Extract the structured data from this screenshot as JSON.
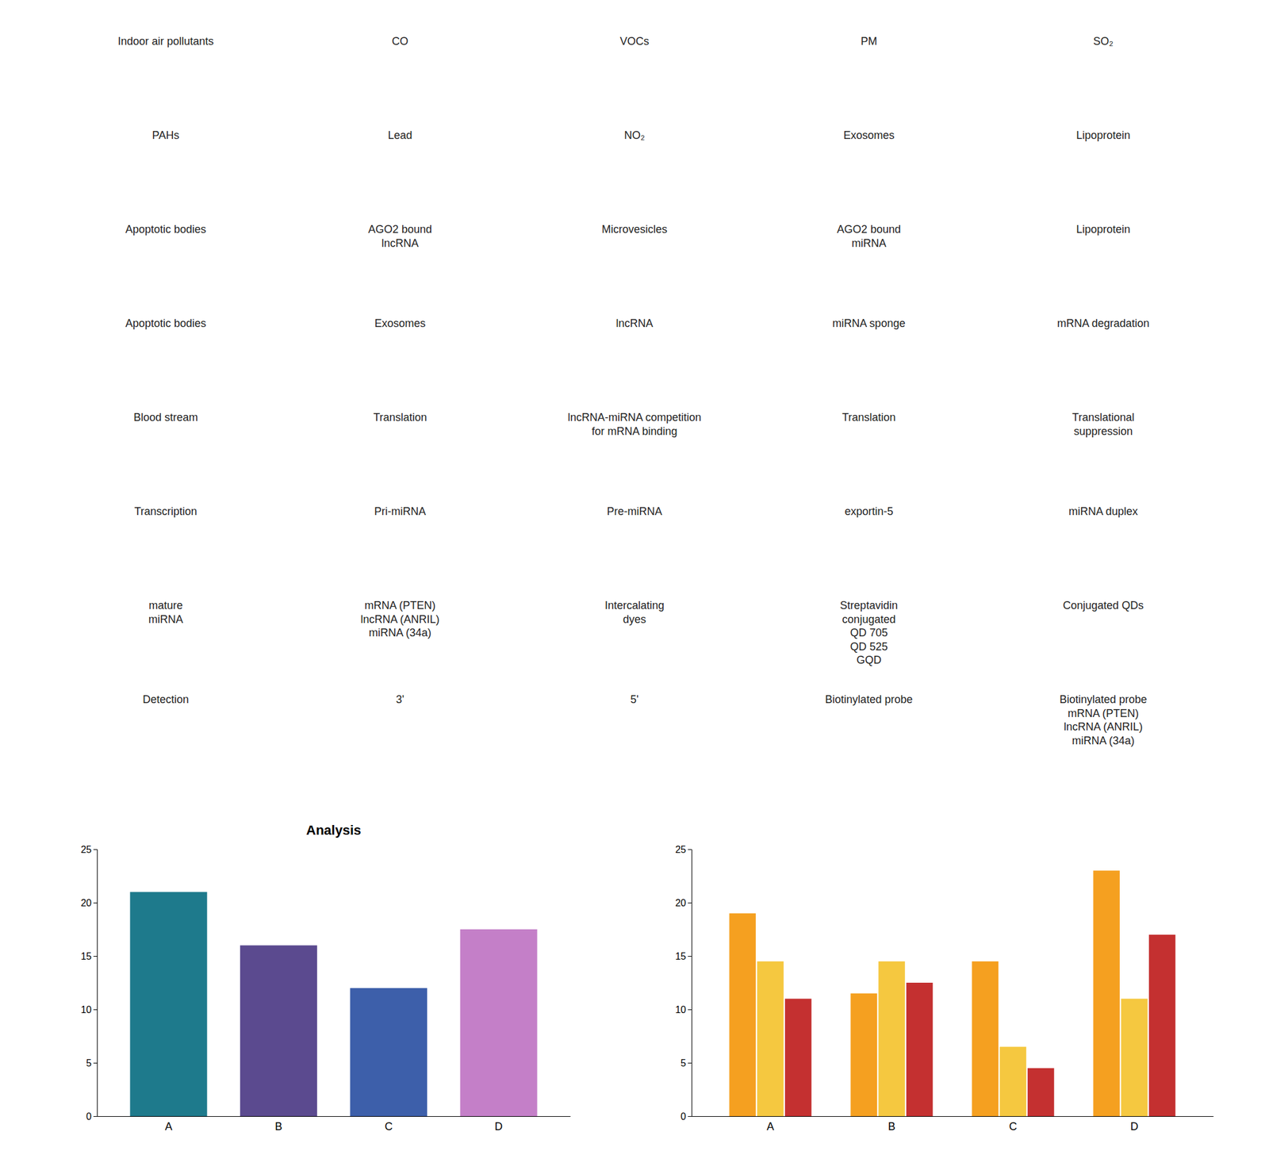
{
  "chart_data": [
    {
      "type": "bar",
      "title": "Analysis",
      "categories": [
        "A",
        "B",
        "C",
        "D"
      ],
      "values": [
        21.0,
        16.0,
        12.0,
        17.5
      ],
      "colors": [
        "#1e7a8c",
        "#5b4a8f",
        "#3d5faa",
        "#c47fc8"
      ],
      "ylim": [
        0,
        25
      ],
      "yticks": [
        0,
        5,
        10,
        15,
        20,
        25
      ],
      "grid": false,
      "annotations": [
        "Indoor air pollutants",
        "CO",
        "VOCs",
        "PM",
        "SO₂",
        "PAHs",
        "Lead",
        "NO₂",
        "Exosomes",
        "Lipoprotein",
        "Apoptotic bodies",
        "AGO2 bound\nlncRNA",
        "Microvesicles",
        "AGO2 bound\nmiRNA",
        "Lipoprotein",
        "Apoptotic bodies",
        "Exosomes",
        "lncRNA",
        "miRNA sponge",
        "mRNA degradation",
        "Blood stream",
        "Translation",
        "lncRNA-miRNA competition\nfor mRNA binding",
        "Translation",
        "Translational\nsuppression",
        "Transcription",
        "Pri-miRNA",
        "Pre-miRNA",
        "exportin-5",
        "miRNA duplex",
        "mature\nmiRNA",
        "mRNA (PTEN)\nlncRNA (ANRIL)\nmiRNA (34a)",
        "Intercalating\ndyes",
        "Streptavidin\nconjugated\nQD 705\nQD 525\nGQD",
        "Conjugated QDs",
        "Detection",
        "3'",
        "5'",
        "Biotinylated probe",
        "Biotinylated probe\nmRNA (PTEN)\nlncRNA (ANRIL)\nmiRNA (34a)"
      ]
    },
    {
      "type": "bar",
      "categories": [
        "A",
        "B",
        "C",
        "D"
      ],
      "series": [
        {
          "color": "#f5a020",
          "values": [
            19.0,
            11.5,
            14.5,
            23.0
          ]
        },
        {
          "color": "#f5c840",
          "values": [
            14.5,
            14.5,
            6.5,
            11.0
          ]
        },
        {
          "color": "#c43030",
          "values": [
            11.0,
            12.5,
            4.5,
            17.0
          ]
        }
      ],
      "ylim": [
        0,
        25
      ],
      "yticks": [
        0,
        5,
        10,
        15,
        20,
        25
      ],
      "grid": false
    }
  ]
}
